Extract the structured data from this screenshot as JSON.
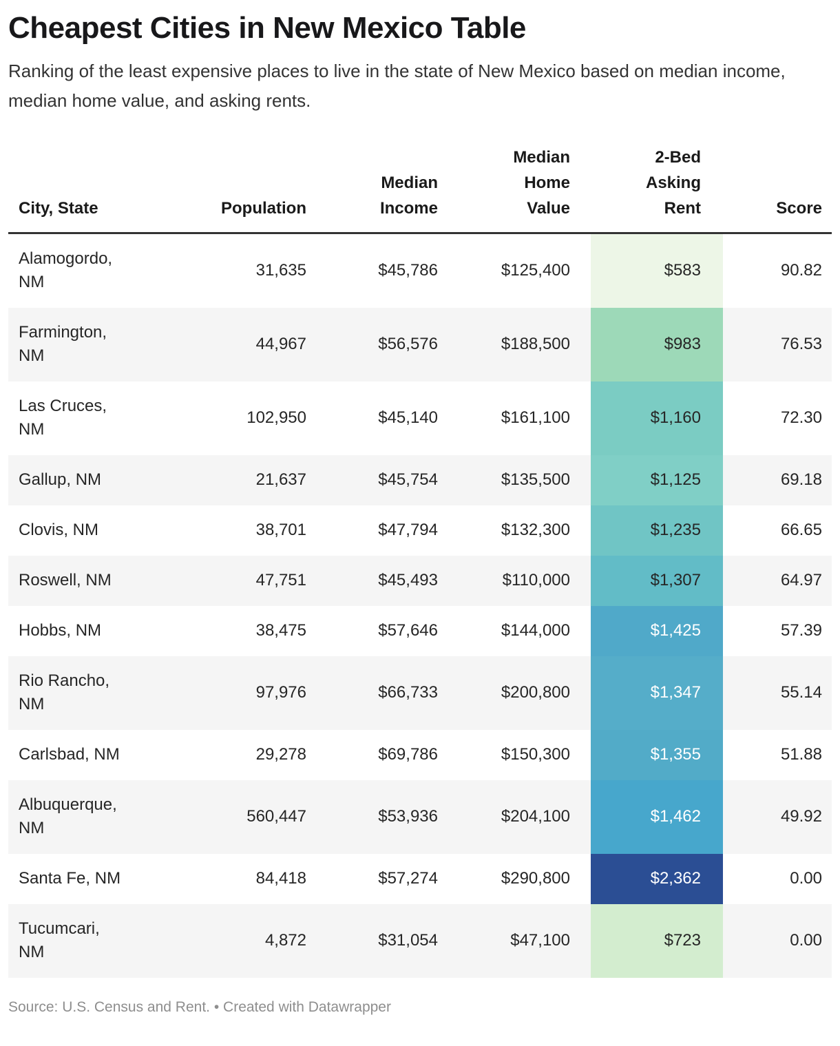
{
  "header": {
    "title": "Cheapest Cities in New Mexico Table",
    "subtitle": "Ranking of the least expensive places to live in the state of New Mexico based on median income, median home value, and asking rents."
  },
  "colors": {
    "header_rule": "#333333",
    "zebra_row": "#f5f5f5",
    "text": "#262626",
    "muted": "#8e8e8e"
  },
  "table": {
    "columns": [
      {
        "key": "city",
        "label": "City, State",
        "align": "left"
      },
      {
        "key": "population",
        "label": "Population",
        "align": "right"
      },
      {
        "key": "income",
        "label": "Median\nIncome",
        "align": "right"
      },
      {
        "key": "home_value",
        "label": "Median\nHome\nValue",
        "align": "right"
      },
      {
        "key": "rent",
        "label": "2-Bed\nAsking\nRent",
        "align": "right"
      },
      {
        "key": "score",
        "label": "Score",
        "align": "right"
      }
    ],
    "rows": [
      {
        "city": "Alamogordo,\nNM",
        "population": "31,635",
        "income": "$45,786",
        "home_value": "$125,400",
        "rent": "$583",
        "score": "90.82",
        "rent_bg": "#edf6e7",
        "rent_color": "#262626"
      },
      {
        "city": "Farmington,\nNM",
        "population": "44,967",
        "income": "$56,576",
        "home_value": "$188,500",
        "rent": "$983",
        "score": "76.53",
        "rent_bg": "#9dd9b8",
        "rent_color": "#262626"
      },
      {
        "city": "Las Cruces,\nNM",
        "population": "102,950",
        "income": "$45,140",
        "home_value": "$161,100",
        "rent": "$1,160",
        "score": "72.30",
        "rent_bg": "#7bccc3",
        "rent_color": "#262626"
      },
      {
        "city": "Gallup, NM",
        "population": "21,637",
        "income": "$45,754",
        "home_value": "$135,500",
        "rent": "$1,125",
        "score": "69.18",
        "rent_bg": "#80cfc6",
        "rent_color": "#262626"
      },
      {
        "city": "Clovis, NM",
        "population": "38,701",
        "income": "$47,794",
        "home_value": "$132,300",
        "rent": "$1,235",
        "score": "66.65",
        "rent_bg": "#70c5c5",
        "rent_color": "#262626"
      },
      {
        "city": "Roswell, NM",
        "population": "47,751",
        "income": "$45,493",
        "home_value": "$110,000",
        "rent": "$1,307",
        "score": "64.97",
        "rent_bg": "#62bcc7",
        "rent_color": "#262626"
      },
      {
        "city": "Hobbs, NM",
        "population": "38,475",
        "income": "$57,646",
        "home_value": "$144,000",
        "rent": "$1,425",
        "score": "57.39",
        "rent_bg": "#50a9c9",
        "rent_color": "#ffffff"
      },
      {
        "city": "Rio Rancho,\nNM",
        "population": "97,976",
        "income": "$66,733",
        "home_value": "$200,800",
        "rent": "$1,347",
        "score": "55.14",
        "rent_bg": "#55adc9",
        "rent_color": "#ffffff"
      },
      {
        "city": "Carlsbad, NM",
        "population": "29,278",
        "income": "$69,786",
        "home_value": "$150,300",
        "rent": "$1,355",
        "score": "51.88",
        "rent_bg": "#52abc8",
        "rent_color": "#ffffff"
      },
      {
        "city": "Albuquerque,\nNM",
        "population": "560,447",
        "income": "$53,936",
        "home_value": "$204,100",
        "rent": "$1,462",
        "score": "49.92",
        "rent_bg": "#47a7cc",
        "rent_color": "#ffffff"
      },
      {
        "city": "Santa Fe, NM",
        "population": "84,418",
        "income": "$57,274",
        "home_value": "$290,800",
        "rent": "$2,362",
        "score": "0.00",
        "rent_bg": "#2b4e94",
        "rent_color": "#ffffff"
      },
      {
        "city": "Tucumcari,\nNM",
        "population": "4,872",
        "income": "$31,054",
        "home_value": "$47,100",
        "rent": "$723",
        "score": "0.00",
        "rent_bg": "#d3edcf",
        "rent_color": "#262626"
      }
    ]
  },
  "footer": {
    "source": "Source: U.S. Census and Rent.",
    "bullet": " • ",
    "credit": "Created with Datawrapper"
  },
  "chart_data": {
    "type": "table",
    "title": "Cheapest Cities in New Mexico Table",
    "subtitle": "Ranking of the least expensive places to live in the state of New Mexico based on median income, median home value, and asking rents.",
    "columns": [
      "City, State",
      "Population",
      "Median Income",
      "Median Home Value",
      "2-Bed Asking Rent",
      "Score"
    ],
    "rows": [
      [
        "Alamogordo, NM",
        31635,
        45786,
        125400,
        583,
        90.82
      ],
      [
        "Farmington, NM",
        44967,
        56576,
        188500,
        983,
        76.53
      ],
      [
        "Las Cruces, NM",
        102950,
        45140,
        161100,
        1160,
        72.3
      ],
      [
        "Gallup, NM",
        21637,
        45754,
        135500,
        1125,
        69.18
      ],
      [
        "Clovis, NM",
        38701,
        47794,
        132300,
        1235,
        66.65
      ],
      [
        "Roswell, NM",
        47751,
        45493,
        110000,
        1307,
        64.97
      ],
      [
        "Hobbs, NM",
        38475,
        57646,
        144000,
        1425,
        57.39
      ],
      [
        "Rio Rancho, NM",
        97976,
        66733,
        200800,
        1347,
        55.14
      ],
      [
        "Carlsbad, NM",
        29278,
        69786,
        150300,
        1355,
        51.88
      ],
      [
        "Albuquerque, NM",
        560447,
        53936,
        204100,
        1462,
        49.92
      ],
      [
        "Santa Fe, NM",
        84418,
        57274,
        290800,
        2362,
        0.0
      ],
      [
        "Tucumcari, NM",
        4872,
        31054,
        47100,
        723,
        0.0
      ]
    ],
    "heatmap_column": "2-Bed Asking Rent",
    "heatmap_scale": [
      "#edf6e7",
      "#9dd9b8",
      "#7bccc3",
      "#50a9c9",
      "#2b4e94"
    ],
    "source": "U.S. Census and Rent."
  }
}
